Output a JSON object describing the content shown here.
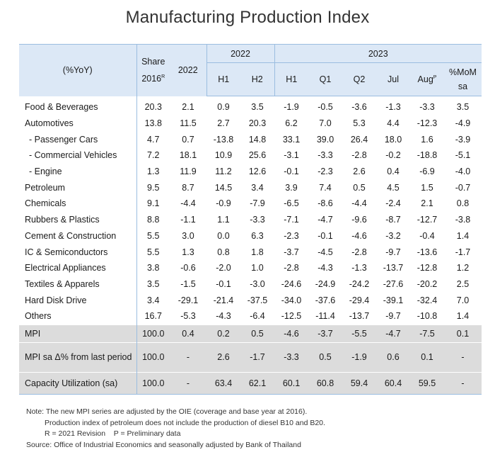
{
  "title": "Manufacturing Production Index",
  "header": {
    "yoy": "(%YoY)",
    "share": "Share",
    "share_year": "2016",
    "share_sup": "R",
    "y2022": "2022",
    "group_2022": "2022",
    "group_2023": "2023",
    "h1_2022": "H1",
    "h2_2022": "H2",
    "h1_2023": "H1",
    "q1": "Q1",
    "q2": "Q2",
    "jul": "Jul",
    "aug": "Aug",
    "aug_sup": "P",
    "mom": "%MoM",
    "mom_sa": "sa"
  },
  "rows": [
    {
      "label": "Food & Beverages",
      "values": [
        "20.3",
        "2.1",
        "0.9",
        "3.5",
        "-1.9",
        "-0.5",
        "-3.6",
        "-1.3",
        "-3.3",
        "3.5"
      ]
    },
    {
      "label": "Automotives",
      "values": [
        "13.8",
        "11.5",
        "2.7",
        "20.3",
        "6.2",
        "7.0",
        "5.3",
        "4.4",
        "-12.3",
        "-4.9"
      ]
    },
    {
      "label": "- Passenger Cars",
      "values": [
        "4.7",
        "0.7",
        "-13.8",
        "14.8",
        "33.1",
        "39.0",
        "26.4",
        "18.0",
        "1.6",
        "-3.9"
      ]
    },
    {
      "label": "- Commercial Vehicles",
      "values": [
        "7.2",
        "18.1",
        "10.9",
        "25.6",
        "-3.1",
        "-3.3",
        "-2.8",
        "-0.2",
        "-18.8",
        "-5.1"
      ]
    },
    {
      "label": "- Engine",
      "values": [
        "1.3",
        "11.9",
        "11.2",
        "12.6",
        "-0.1",
        "-2.3",
        "2.6",
        "0.4",
        "-6.9",
        "-4.0"
      ]
    },
    {
      "label": "Petroleum",
      "values": [
        "9.5",
        "8.7",
        "14.5",
        "3.4",
        "3.9",
        "7.4",
        "0.5",
        "4.5",
        "1.5",
        "-0.7"
      ]
    },
    {
      "label": "Chemicals",
      "values": [
        "9.1",
        "-4.4",
        "-0.9",
        "-7.9",
        "-6.5",
        "-8.6",
        "-4.4",
        "-2.4",
        "2.1",
        "0.8"
      ]
    },
    {
      "label": "Rubbers & Plastics",
      "values": [
        "8.8",
        "-1.1",
        "1.1",
        "-3.3",
        "-7.1",
        "-4.7",
        "-9.6",
        "-8.7",
        "-12.7",
        "-3.8"
      ]
    },
    {
      "label": "Cement & Construction",
      "values": [
        "5.5",
        "3.0",
        "0.0",
        "6.3",
        "-2.3",
        "-0.1",
        "-4.6",
        "-3.2",
        "-0.4",
        "1.4"
      ]
    },
    {
      "label": "IC & Semiconductors",
      "values": [
        "5.5",
        "1.3",
        "0.8",
        "1.8",
        "-3.7",
        "-4.5",
        "-2.8",
        "-9.7",
        "-13.6",
        "-1.7"
      ]
    },
    {
      "label": "Electrical Appliances",
      "values": [
        "3.8",
        "-0.6",
        "-2.0",
        "1.0",
        "-2.8",
        "-4.3",
        "-1.3",
        "-13.7",
        "-12.8",
        "1.2"
      ]
    },
    {
      "label": "Textiles & Apparels",
      "values": [
        "3.5",
        "-1.5",
        "-0.1",
        "-3.0",
        "-24.6",
        "-24.9",
        "-24.2",
        "-27.6",
        "-20.2",
        "2.5"
      ]
    },
    {
      "label": "Hard Disk Drive",
      "values": [
        "3.4",
        "-29.1",
        "-21.4",
        "-37.5",
        "-34.0",
        "-37.6",
        "-29.4",
        "-39.1",
        "-32.4",
        "7.0"
      ]
    },
    {
      "label": "Others",
      "values": [
        "16.7",
        "-5.3",
        "-4.3",
        "-6.4",
        "-12.5",
        "-11.4",
        "-13.7",
        "-9.7",
        "-10.8",
        "1.4"
      ]
    }
  ],
  "summary_rows": [
    {
      "label": "MPI",
      "values": [
        "100.0",
        "0.4",
        "0.2",
        "0.5",
        "-4.6",
        "-3.7",
        "-5.5",
        "-4.7",
        "-7.5",
        "0.1"
      ]
    },
    {
      "label": "MPI sa Δ% from last period",
      "values": [
        "100.0",
        "-",
        "2.6",
        "-1.7",
        "-3.3",
        "0.5",
        "-1.9",
        "0.6",
        "0.1",
        "-"
      ]
    },
    {
      "label": "Capacity Utilization (sa)",
      "values": [
        "100.0",
        "-",
        "63.4",
        "62.1",
        "60.1",
        "60.8",
        "59.4",
        "60.4",
        "59.5",
        "-"
      ]
    }
  ],
  "notes": {
    "line1": "Note: The new MPI series are adjusted by the OIE (coverage and base year at 2016).",
    "line2": "Production index of petroleum does not include the production of diesel B10 and B20.",
    "line3": "R = 2021 Revision    P = Preliminary data",
    "line4": "Source: Office of Industrial Economics and seasonally adjusted by Bank of Thailand"
  }
}
